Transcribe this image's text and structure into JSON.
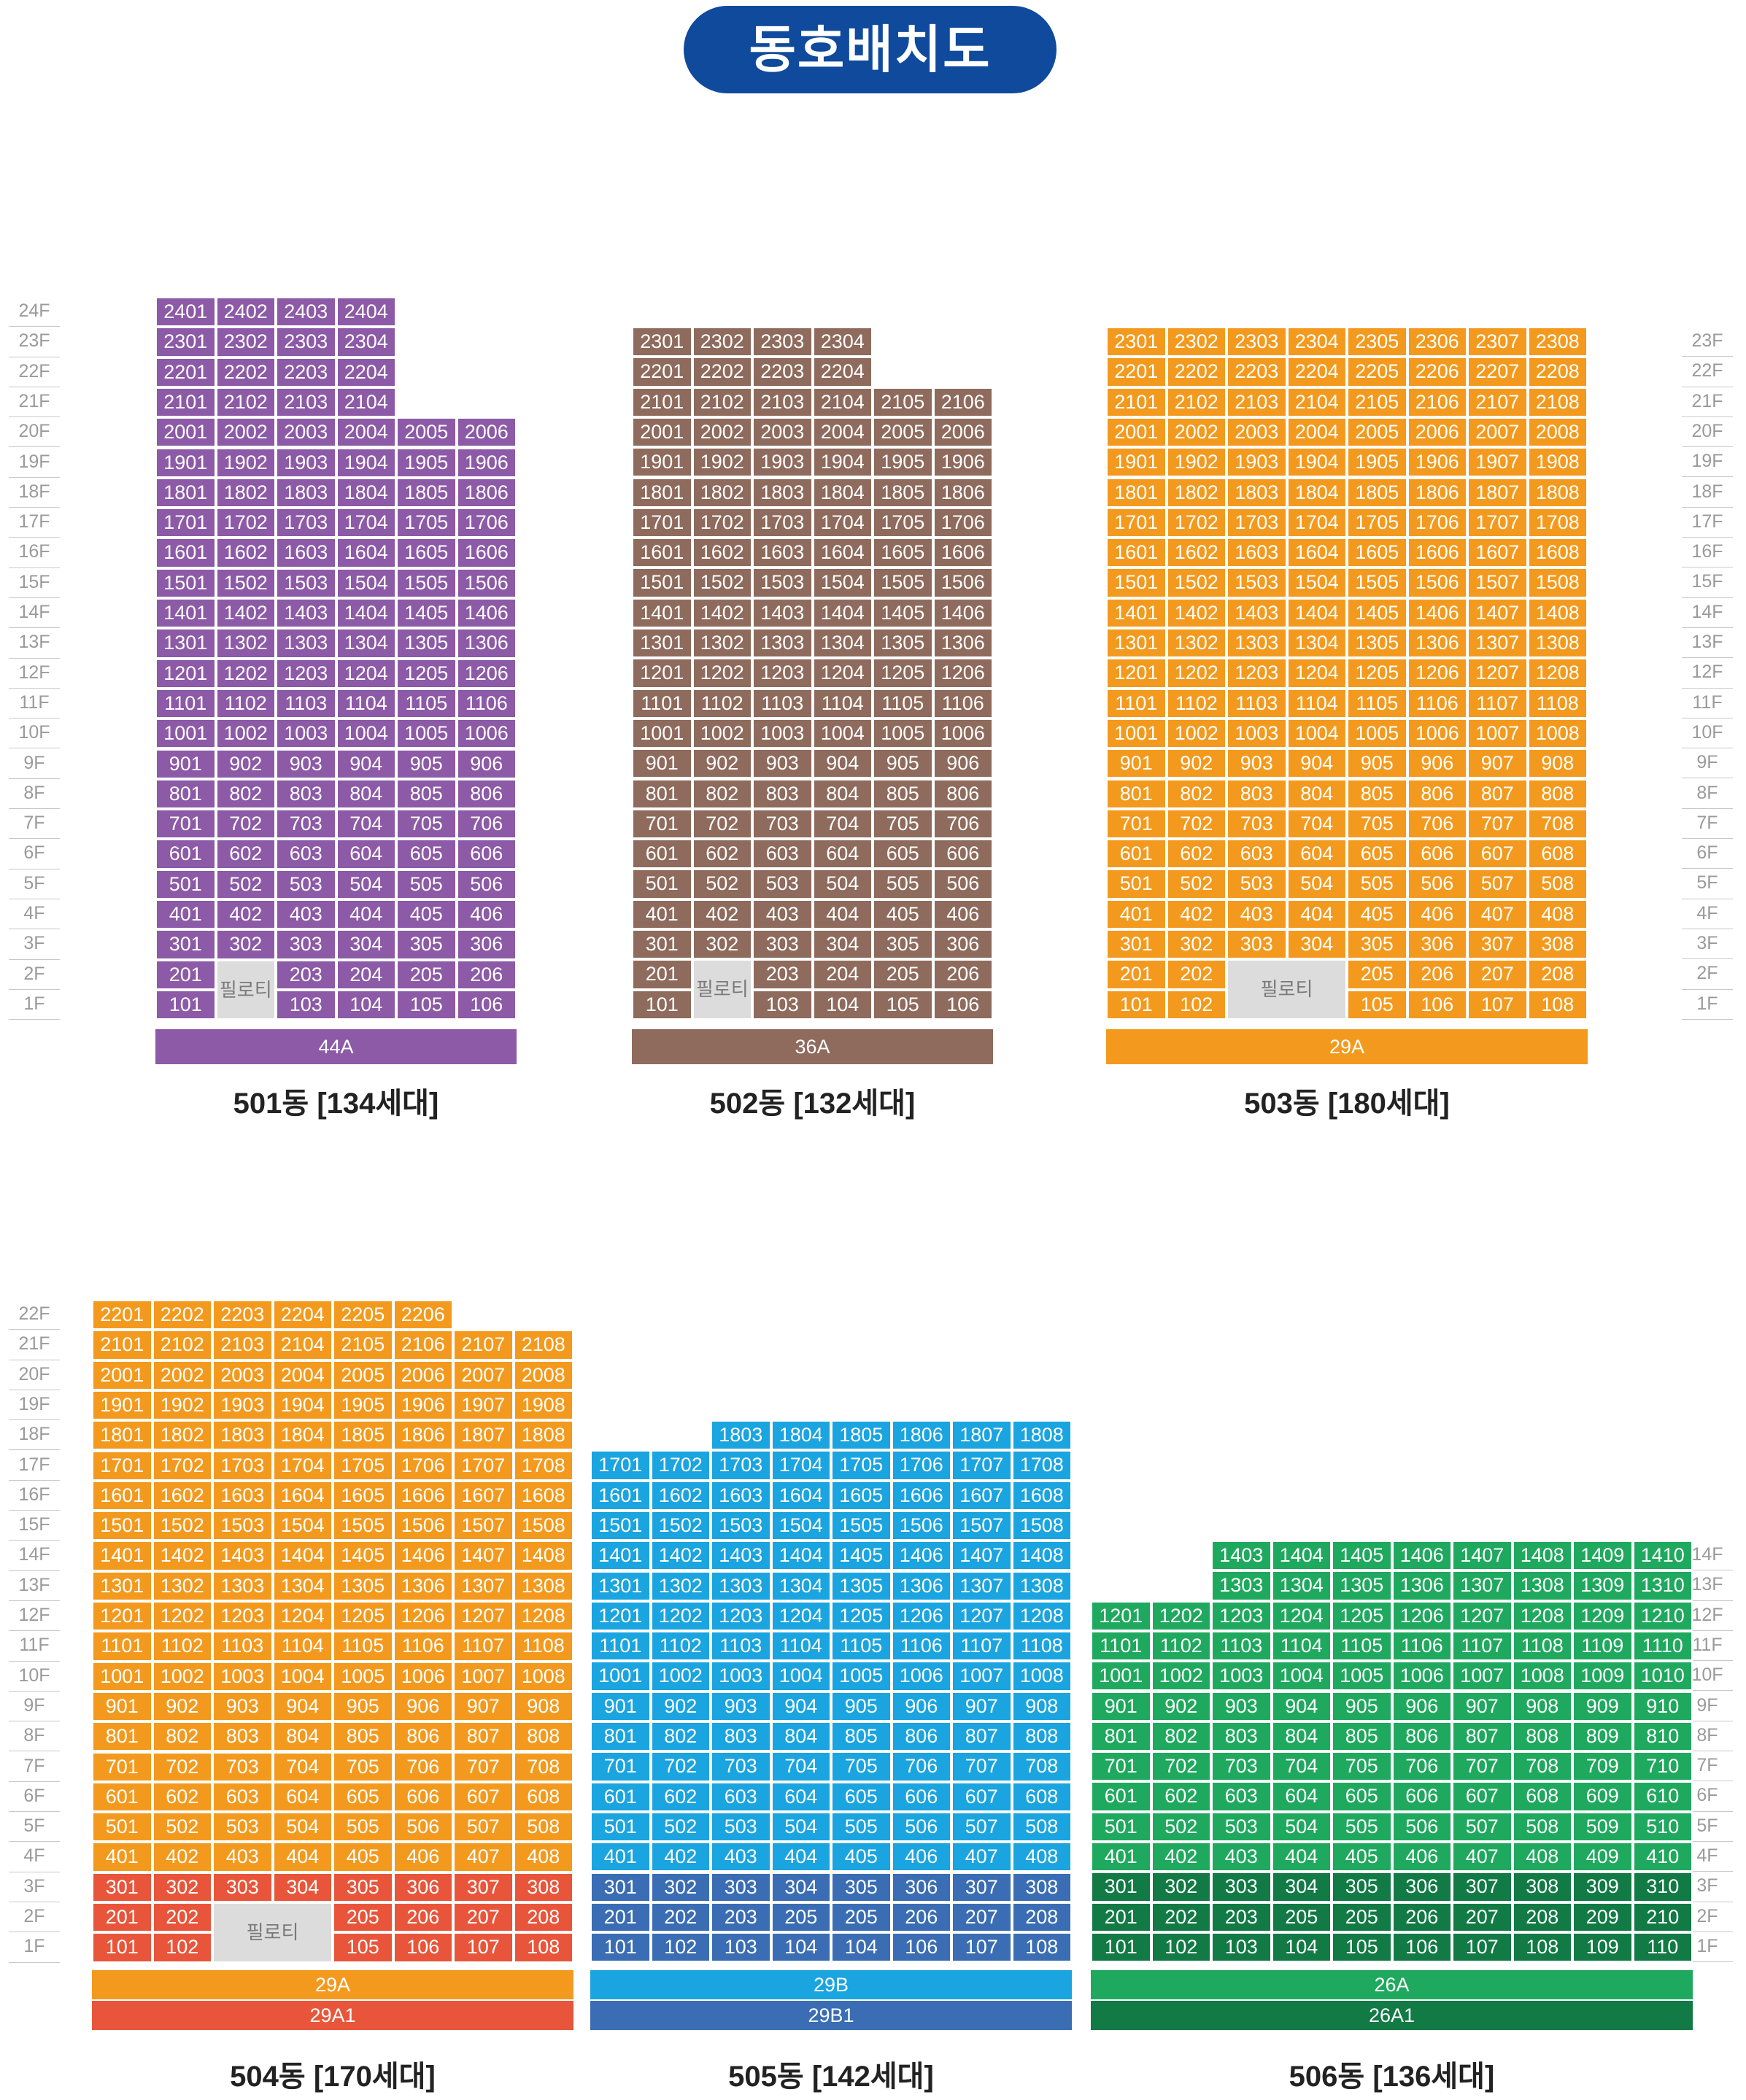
{
  "title": "동호배치도",
  "pilotis_label": "필로티",
  "floor_columns": [
    {
      "floors": [
        "24F",
        "23F",
        "22F",
        "21F",
        "20F",
        "19F",
        "18F",
        "17F",
        "16F",
        "15F",
        "14F",
        "13F",
        "12F",
        "11F",
        "10F",
        "9F",
        "8F",
        "7F",
        "6F",
        "5F",
        "4F",
        "3F",
        "2F",
        "1F"
      ]
    },
    {
      "floors": [
        "23F",
        "22F",
        "21F",
        "20F",
        "19F",
        "18F",
        "17F",
        "16F",
        "15F",
        "14F",
        "13F",
        "12F",
        "11F",
        "10F",
        "9F",
        "8F",
        "7F",
        "6F",
        "5F",
        "4F",
        "3F",
        "2F",
        "1F"
      ]
    },
    {
      "floors": [
        "22F",
        "21F",
        "20F",
        "19F",
        "18F",
        "17F",
        "16F",
        "15F",
        "14F",
        "13F",
        "12F",
        "11F",
        "10F",
        "9F",
        "8F",
        "7F",
        "6F",
        "5F",
        "4F",
        "3F",
        "2F",
        "1F"
      ]
    },
    {
      "floors": [
        "14F",
        "13F",
        "12F",
        "11F",
        "10F",
        "9F",
        "8F",
        "7F",
        "6F",
        "5F",
        "4F",
        "3F",
        "2F",
        "1F"
      ]
    }
  ],
  "buildings": [
    {
      "name": "501동 [134세대]",
      "color": "#8c5aa6",
      "color_low": "#8c5aa6",
      "floors": {
        "24": [
          1,
          2,
          3,
          4
        ],
        "23": [
          1,
          2,
          3,
          4
        ],
        "22": [
          1,
          2,
          3,
          4
        ],
        "21": [
          1,
          2,
          3,
          4
        ],
        "20": [
          1,
          2,
          3,
          4,
          5,
          6
        ],
        "19": [
          1,
          2,
          3,
          4,
          5,
          6
        ],
        "18": [
          1,
          2,
          3,
          4,
          5,
          6
        ],
        "17": [
          1,
          2,
          3,
          4,
          5,
          6
        ],
        "16": [
          1,
          2,
          3,
          4,
          5,
          6
        ],
        "15": [
          1,
          2,
          3,
          4,
          5,
          6
        ],
        "14": [
          1,
          2,
          3,
          4,
          5,
          6
        ],
        "13": [
          1,
          2,
          3,
          4,
          5,
          6
        ],
        "12": [
          1,
          2,
          3,
          4,
          5,
          6
        ],
        "11": [
          1,
          2,
          3,
          4,
          5,
          6
        ],
        "10": [
          1,
          2,
          3,
          4,
          5,
          6
        ],
        "9": [
          1,
          2,
          3,
          4,
          5,
          6
        ],
        "8": [
          1,
          2,
          3,
          4,
          5,
          6
        ],
        "7": [
          1,
          2,
          3,
          4,
          5,
          6
        ],
        "6": [
          1,
          2,
          3,
          4,
          5,
          6
        ],
        "5": [
          1,
          2,
          3,
          4,
          5,
          6
        ],
        "4": [
          1,
          2,
          3,
          4,
          5,
          6
        ],
        "3": [
          1,
          2,
          3,
          4,
          5,
          6
        ],
        "2": [
          1,
          3,
          4,
          5,
          6
        ],
        "1": [
          1,
          3,
          4,
          5,
          6
        ]
      },
      "pilotis": {
        "col": 2,
        "span": 1
      },
      "types": [
        {
          "label": "44A",
          "color": "#8c5aa6"
        }
      ]
    },
    {
      "name": "502동 [132세대]",
      "color": "#8e6b5d",
      "color_low": "#8e6b5d",
      "floors": {
        "23": [
          1,
          2,
          3,
          4
        ],
        "22": [
          1,
          2,
          3,
          4
        ],
        "21": [
          1,
          2,
          3,
          4,
          5,
          6
        ],
        "20": [
          1,
          2,
          3,
          4,
          5,
          6
        ],
        "19": [
          1,
          2,
          3,
          4,
          5,
          6
        ],
        "18": [
          1,
          2,
          3,
          4,
          5,
          6
        ],
        "17": [
          1,
          2,
          3,
          4,
          5,
          6
        ],
        "16": [
          1,
          2,
          3,
          4,
          5,
          6
        ],
        "15": [
          1,
          2,
          3,
          4,
          5,
          6
        ],
        "14": [
          1,
          2,
          3,
          4,
          5,
          6
        ],
        "13": [
          1,
          2,
          3,
          4,
          5,
          6
        ],
        "12": [
          1,
          2,
          3,
          4,
          5,
          6
        ],
        "11": [
          1,
          2,
          3,
          4,
          5,
          6
        ],
        "10": [
          1,
          2,
          3,
          4,
          5,
          6
        ],
        "9": [
          1,
          2,
          3,
          4,
          5,
          6
        ],
        "8": [
          1,
          2,
          3,
          4,
          5,
          6
        ],
        "7": [
          1,
          2,
          3,
          4,
          5,
          6
        ],
        "6": [
          1,
          2,
          3,
          4,
          5,
          6
        ],
        "5": [
          1,
          2,
          3,
          4,
          5,
          6
        ],
        "4": [
          1,
          2,
          3,
          4,
          5,
          6
        ],
        "3": [
          1,
          2,
          3,
          4,
          5,
          6
        ],
        "2": [
          1,
          3,
          4,
          5,
          6
        ],
        "1": [
          1,
          3,
          4,
          5,
          6
        ]
      },
      "pilotis": {
        "col": 2,
        "span": 1
      },
      "types": [
        {
          "label": "36A",
          "color": "#8e6b5d"
        }
      ]
    },
    {
      "name": "503동 [180세대]",
      "color": "#f39a1e",
      "color_low": "#f39a1e",
      "floors": {
        "23": [
          1,
          2,
          3,
          4,
          5,
          6,
          7,
          8
        ],
        "22": [
          1,
          2,
          3,
          4,
          5,
          6,
          7,
          8
        ],
        "21": [
          1,
          2,
          3,
          4,
          5,
          6,
          7,
          8
        ],
        "20": [
          1,
          2,
          3,
          4,
          5,
          6,
          7,
          8
        ],
        "19": [
          1,
          2,
          3,
          4,
          5,
          6,
          7,
          8
        ],
        "18": [
          1,
          2,
          3,
          4,
          5,
          6,
          7,
          8
        ],
        "17": [
          1,
          2,
          3,
          4,
          5,
          6,
          7,
          8
        ],
        "16": [
          1,
          2,
          3,
          4,
          5,
          6,
          7,
          8
        ],
        "15": [
          1,
          2,
          3,
          4,
          5,
          6,
          7,
          8
        ],
        "14": [
          1,
          2,
          3,
          4,
          5,
          6,
          7,
          8
        ],
        "13": [
          1,
          2,
          3,
          4,
          5,
          6,
          7,
          8
        ],
        "12": [
          1,
          2,
          3,
          4,
          5,
          6,
          7,
          8
        ],
        "11": [
          1,
          2,
          3,
          4,
          5,
          6,
          7,
          8
        ],
        "10": [
          1,
          2,
          3,
          4,
          5,
          6,
          7,
          8
        ],
        "9": [
          1,
          2,
          3,
          4,
          5,
          6,
          7,
          8
        ],
        "8": [
          1,
          2,
          3,
          4,
          5,
          6,
          7,
          8
        ],
        "7": [
          1,
          2,
          3,
          4,
          5,
          6,
          7,
          8
        ],
        "6": [
          1,
          2,
          3,
          4,
          5,
          6,
          7,
          8
        ],
        "5": [
          1,
          2,
          3,
          4,
          5,
          6,
          7,
          8
        ],
        "4": [
          1,
          2,
          3,
          4,
          5,
          6,
          7,
          8
        ],
        "3": [
          1,
          2,
          3,
          4,
          5,
          6,
          7,
          8
        ],
        "2": [
          1,
          2,
          5,
          6,
          7,
          8
        ],
        "1": [
          1,
          2,
          5,
          6,
          7,
          8
        ]
      },
      "pilotis": {
        "col": 3,
        "span": 2
      },
      "types": [
        {
          "label": "29A",
          "color": "#f39a1e"
        }
      ]
    },
    {
      "name": "504동 [170세대]",
      "color": "#f39a1e",
      "color_low": "#e8553a",
      "floors": {
        "22": [
          1,
          2,
          3,
          4,
          5,
          6
        ],
        "21": [
          1,
          2,
          3,
          4,
          5,
          6,
          7,
          8
        ],
        "20": [
          1,
          2,
          3,
          4,
          5,
          6,
          7,
          8
        ],
        "19": [
          1,
          2,
          3,
          4,
          5,
          6,
          7,
          8
        ],
        "18": [
          1,
          2,
          3,
          4,
          5,
          6,
          7,
          8
        ],
        "17": [
          1,
          2,
          3,
          4,
          5,
          6,
          7,
          8
        ],
        "16": [
          1,
          2,
          3,
          4,
          5,
          6,
          7,
          8
        ],
        "15": [
          1,
          2,
          3,
          4,
          5,
          6,
          7,
          8
        ],
        "14": [
          1,
          2,
          3,
          4,
          5,
          6,
          7,
          8
        ],
        "13": [
          1,
          2,
          3,
          4,
          5,
          6,
          7,
          8
        ],
        "12": [
          1,
          2,
          3,
          4,
          5,
          6,
          7,
          8
        ],
        "11": [
          1,
          2,
          3,
          4,
          5,
          6,
          7,
          8
        ],
        "10": [
          1,
          2,
          3,
          4,
          5,
          6,
          7,
          8
        ],
        "9": [
          1,
          2,
          3,
          4,
          5,
          6,
          7,
          8
        ],
        "8": [
          1,
          2,
          3,
          4,
          5,
          6,
          7,
          8
        ],
        "7": [
          1,
          2,
          3,
          4,
          5,
          6,
          7,
          8
        ],
        "6": [
          1,
          2,
          3,
          4,
          5,
          6,
          7,
          8
        ],
        "5": [
          1,
          2,
          3,
          4,
          5,
          6,
          7,
          8
        ],
        "4": [
          1,
          2,
          3,
          4,
          5,
          6,
          7,
          8
        ],
        "3": [
          1,
          2,
          3,
          4,
          5,
          6,
          7,
          8
        ],
        "2": [
          1,
          2,
          5,
          6,
          7,
          8
        ],
        "1": [
          1,
          2,
          5,
          6,
          7,
          8
        ]
      },
      "pilotis": {
        "col": 3,
        "span": 2
      },
      "types": [
        {
          "label": "29A",
          "color": "#f39a1e"
        },
        {
          "label": "29A1",
          "color": "#e8553a"
        }
      ]
    },
    {
      "name": "505동 [142세대]",
      "color": "#1aa4e0",
      "color_low": "#3a6db4",
      "floors": {
        "18": [
          3,
          4,
          5,
          6,
          7,
          8
        ],
        "17": [
          1,
          2,
          3,
          4,
          5,
          6,
          7,
          8
        ],
        "16": [
          1,
          2,
          3,
          4,
          5,
          6,
          7,
          8
        ],
        "15": [
          1,
          2,
          3,
          4,
          5,
          6,
          7,
          8
        ],
        "14": [
          1,
          2,
          3,
          4,
          5,
          6,
          7,
          8
        ],
        "13": [
          1,
          2,
          3,
          4,
          5,
          6,
          7,
          8
        ],
        "12": [
          1,
          2,
          3,
          4,
          5,
          6,
          7,
          8
        ],
        "11": [
          1,
          2,
          3,
          4,
          5,
          6,
          7,
          8
        ],
        "10": [
          1,
          2,
          3,
          4,
          5,
          6,
          7,
          8
        ],
        "9": [
          1,
          2,
          3,
          4,
          5,
          6,
          7,
          8
        ],
        "8": [
          1,
          2,
          3,
          4,
          5,
          6,
          7,
          8
        ],
        "7": [
          1,
          2,
          3,
          4,
          5,
          6,
          7,
          8
        ],
        "6": [
          1,
          2,
          3,
          4,
          5,
          6,
          7,
          8
        ],
        "5": [
          1,
          2,
          3,
          4,
          5,
          6,
          7,
          8
        ],
        "4": [
          1,
          2,
          3,
          4,
          5,
          6,
          7,
          8
        ],
        "3": [
          1,
          2,
          3,
          4,
          5,
          6,
          7,
          8
        ],
        "2": [
          1,
          2,
          3,
          5,
          5,
          6,
          7,
          8
        ],
        "1": [
          1,
          2,
          3,
          4,
          4,
          6,
          7,
          8
        ]
      },
      "types": [
        {
          "label": "29B",
          "color": "#1aa4e0"
        },
        {
          "label": "29B1",
          "color": "#3a6db4"
        }
      ]
    },
    {
      "name": "506동 [136세대]",
      "color": "#1fa95e",
      "color_low": "#117a45",
      "floors": {
        "14": [
          3,
          4,
          5,
          6,
          7,
          8,
          9,
          10
        ],
        "13": [
          3,
          4,
          5,
          6,
          7,
          8,
          9,
          10
        ],
        "12": [
          1,
          2,
          3,
          4,
          5,
          6,
          7,
          8,
          9,
          10
        ],
        "11": [
          1,
          2,
          3,
          4,
          5,
          6,
          7,
          8,
          9,
          10
        ],
        "10": [
          1,
          2,
          3,
          4,
          5,
          6,
          7,
          8,
          9,
          10
        ],
        "9": [
          1,
          2,
          3,
          4,
          5,
          6,
          7,
          8,
          9,
          10
        ],
        "8": [
          1,
          2,
          3,
          4,
          5,
          6,
          7,
          8,
          9,
          10
        ],
        "7": [
          1,
          2,
          3,
          4,
          5,
          6,
          7,
          8,
          9,
          10
        ],
        "6": [
          1,
          2,
          3,
          4,
          5,
          6,
          7,
          8,
          9,
          10
        ],
        "5": [
          1,
          2,
          3,
          4,
          5,
          6,
          7,
          8,
          9,
          10
        ],
        "4": [
          1,
          2,
          3,
          4,
          5,
          6,
          7,
          8,
          9,
          10
        ],
        "3": [
          1,
          2,
          3,
          4,
          5,
          6,
          7,
          8,
          9,
          10
        ],
        "2": [
          1,
          2,
          3,
          5,
          5,
          6,
          7,
          8,
          9,
          10
        ],
        "1": [
          1,
          2,
          3,
          4,
          5,
          6,
          7,
          8,
          9,
          10
        ]
      },
      "types": [
        {
          "label": "26A",
          "color": "#1fa95e"
        },
        {
          "label": "26A1",
          "color": "#117a45"
        }
      ]
    }
  ]
}
